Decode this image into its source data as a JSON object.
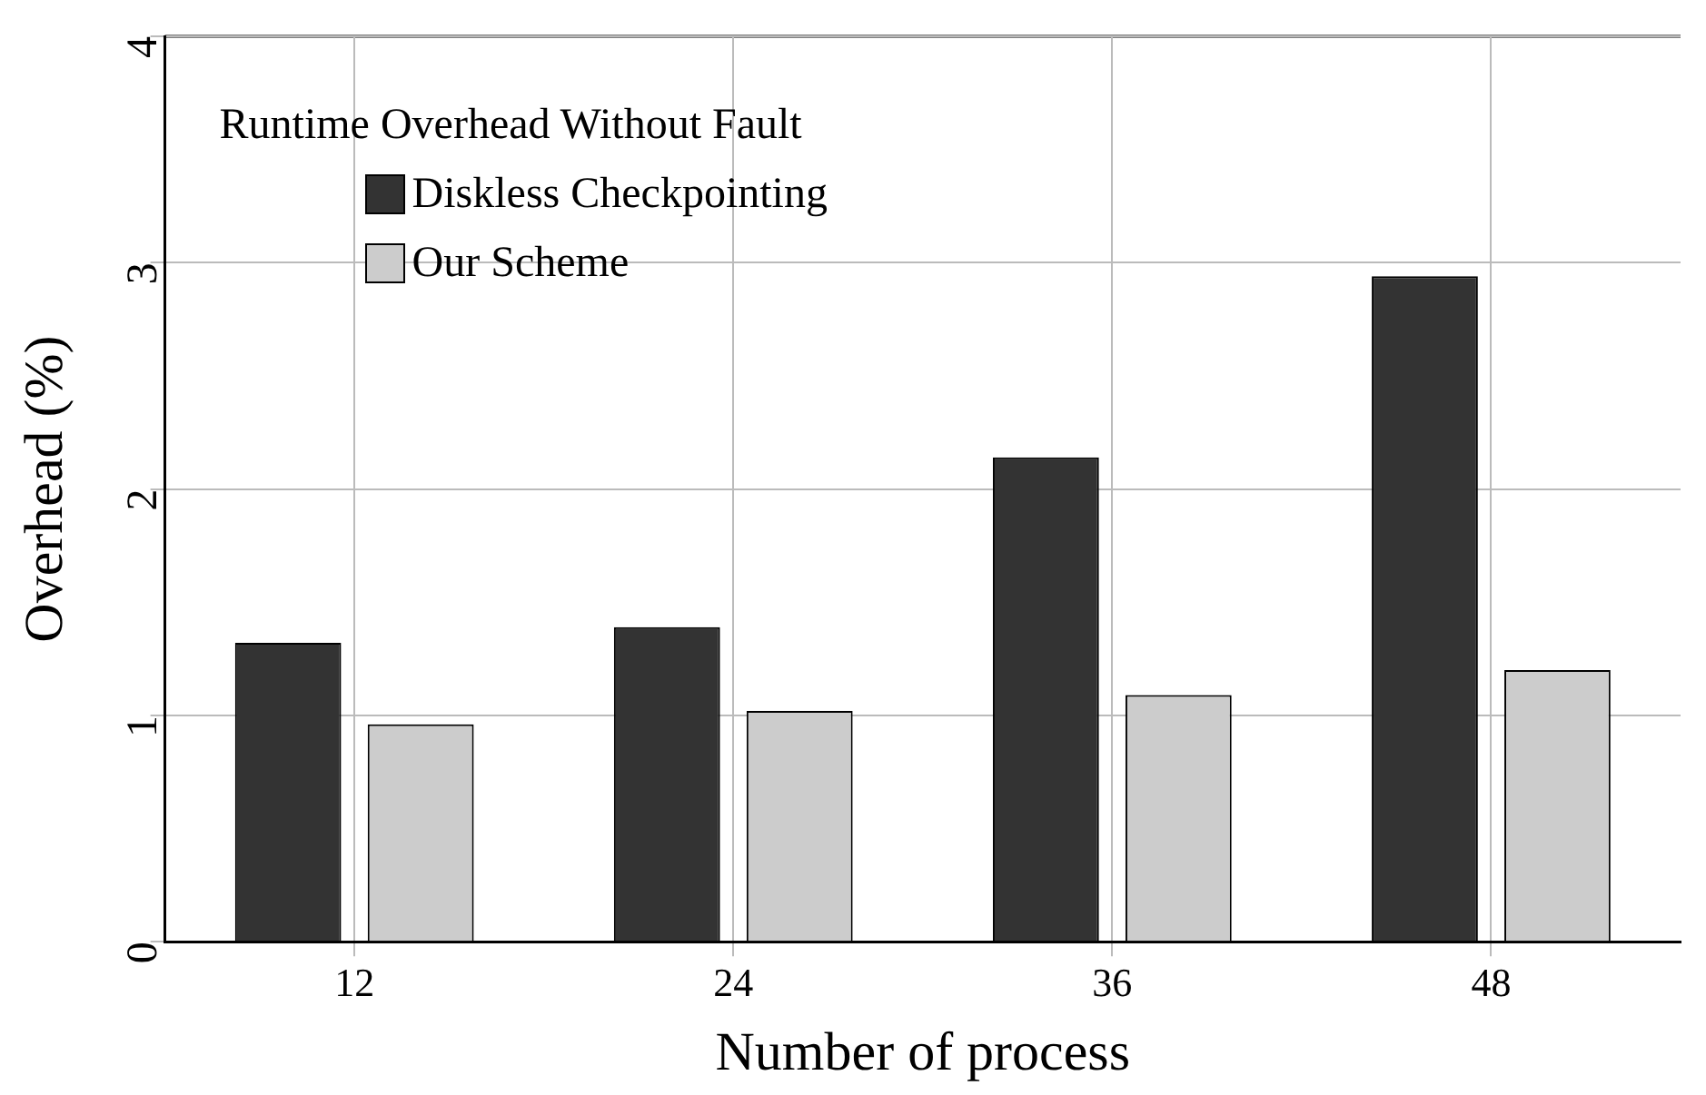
{
  "chart_data": {
    "type": "bar",
    "xlabel": "Number of process",
    "ylabel": "Overhead (%)",
    "legend_title": "Runtime Overhead Without Fault",
    "categories": [
      "12",
      "24",
      "36",
      "48"
    ],
    "series": [
      {
        "name": "Diskless Checkpointing",
        "color": "#333333",
        "values": [
          1.32,
          1.39,
          2.14,
          2.94
        ]
      },
      {
        "name": "Our Scheme",
        "color": "#cccccc",
        "values": [
          0.96,
          1.02,
          1.09,
          1.2
        ]
      }
    ],
    "ylim": [
      0,
      4
    ],
    "yticks": [
      0,
      1,
      2,
      3,
      4
    ],
    "grid": true,
    "legend": "top left"
  }
}
